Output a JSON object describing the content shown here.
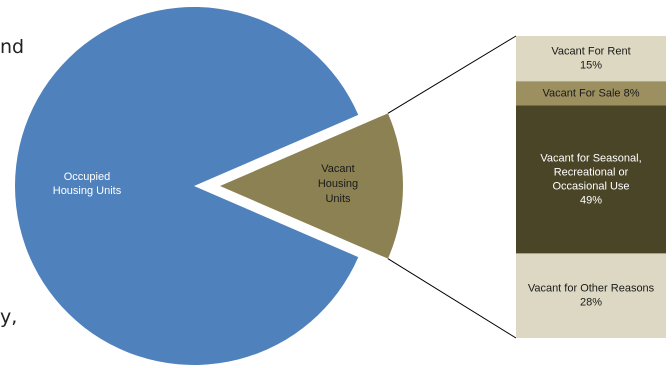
{
  "colors": {
    "occupied": "#4f81bd",
    "vacant": "#8b8152",
    "rent": "#ddd8c1",
    "sale": "#9c9060",
    "seasonal": "#4a4526",
    "other": "#ddd8c3",
    "connector": "#000000",
    "text_dark": "#1a1a1a",
    "text_light": "#ffffff"
  },
  "text_fragments": {
    "top_left": "nd",
    "bottom_left": "y,"
  },
  "chart_data": [
    {
      "type": "pie",
      "title": "",
      "slices": [
        {
          "label": [
            "Occupied",
            "Housing Units"
          ],
          "share": 0.87,
          "color_key": "occupied",
          "exploded": false
        },
        {
          "label": [
            "Vacant",
            "Housing",
            "Units"
          ],
          "share": 0.13,
          "color_key": "vacant",
          "exploded": true
        }
      ]
    },
    {
      "type": "bar",
      "orientation": "stacked-column",
      "breakdown_of": "Vacant Housing Units",
      "segments": [
        {
          "label": [
            "Vacant For Rent",
            "15%"
          ],
          "value": 15,
          "color_key": "rent",
          "text": "dark"
        },
        {
          "label": [
            "Vacant For Sale 8%"
          ],
          "value": 8,
          "color_key": "sale",
          "text": "dark"
        },
        {
          "label": [
            "Vacant for Seasonal,",
            "Recreational or",
            "Occasional Use",
            "49%"
          ],
          "value": 49,
          "color_key": "seasonal",
          "text": "light"
        },
        {
          "label": [
            "Vacant for Other Reasons",
            "28%"
          ],
          "value": 28,
          "color_key": "other",
          "text": "dark"
        }
      ]
    }
  ]
}
